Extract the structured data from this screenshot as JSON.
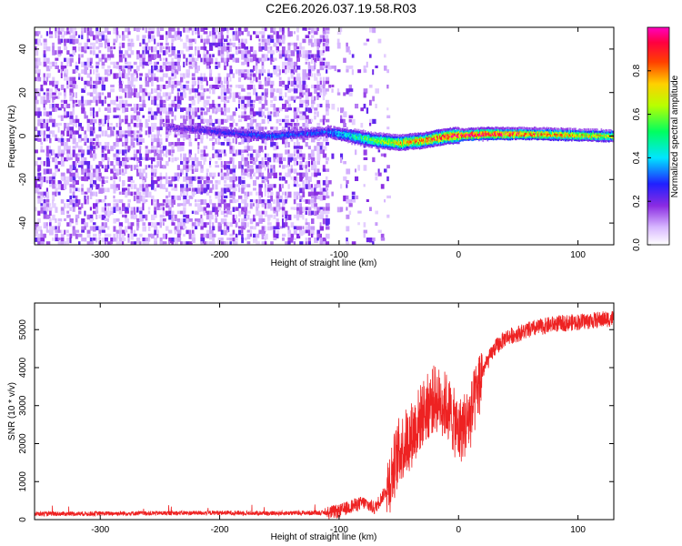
{
  "title": "C2E6.2026.037.19.58.R03",
  "chart_data": [
    {
      "type": "heatmap",
      "name": "spectrogram",
      "xlabel": "Height of straight line (km)",
      "ylabel": "Frequency (Hz)",
      "xlim": [
        -355,
        130
      ],
      "ylim": [
        -50,
        50
      ],
      "xticks": [
        "-300",
        "-200",
        "-100",
        "0",
        "100"
      ],
      "yticks": [
        "-40",
        "-20",
        "0",
        "20",
        "40"
      ],
      "colorbar": {
        "label": "Normalized spectral amplitude",
        "range": [
          0,
          1
        ],
        "ticks": [
          "0.0",
          "0.2",
          "0.4",
          "0.6",
          "0.8"
        ]
      },
      "ridge": [
        {
          "x": -240,
          "freq": 4,
          "amp": 0.2
        },
        {
          "x": -200,
          "freq": 2,
          "amp": 0.25
        },
        {
          "x": -160,
          "freq": 0,
          "amp": 0.3
        },
        {
          "x": -110,
          "freq": 2,
          "amp": 0.3
        },
        {
          "x": -90,
          "freq": 0,
          "amp": 0.45
        },
        {
          "x": -70,
          "freq": -2,
          "amp": 0.55
        },
        {
          "x": -50,
          "freq": -3,
          "amp": 0.7
        },
        {
          "x": -30,
          "freq": -2,
          "amp": 0.75
        },
        {
          "x": -10,
          "freq": 0,
          "amp": 0.85
        },
        {
          "x": 20,
          "freq": 1,
          "amp": 0.95
        },
        {
          "x": 60,
          "freq": 1,
          "amp": 0.8
        },
        {
          "x": 130,
          "freq": 0,
          "amp": 0.65
        }
      ]
    },
    {
      "type": "line",
      "name": "snr",
      "xlabel": "Height of straight line (km)",
      "ylabel": "SNR (10 * v/v)",
      "xlim": [
        -355,
        130
      ],
      "ylim": [
        0,
        5700
      ],
      "xticks": [
        "-300",
        "-200",
        "-100",
        "0",
        "100"
      ],
      "yticks": [
        "0",
        "1000",
        "2000",
        "3000",
        "4000",
        "5000"
      ],
      "x": [
        -355,
        -300,
        -250,
        -200,
        -150,
        -110,
        -100,
        -90,
        -80,
        -70,
        -60,
        -50,
        -40,
        -30,
        -20,
        -10,
        0,
        10,
        20,
        30,
        40,
        60,
        80,
        100,
        130
      ],
      "values": [
        150,
        160,
        170,
        180,
        170,
        180,
        220,
        350,
        450,
        300,
        800,
        1800,
        2200,
        2800,
        3200,
        3000,
        2300,
        2700,
        3900,
        4500,
        4800,
        5000,
        5150,
        5200,
        5300
      ]
    }
  ]
}
